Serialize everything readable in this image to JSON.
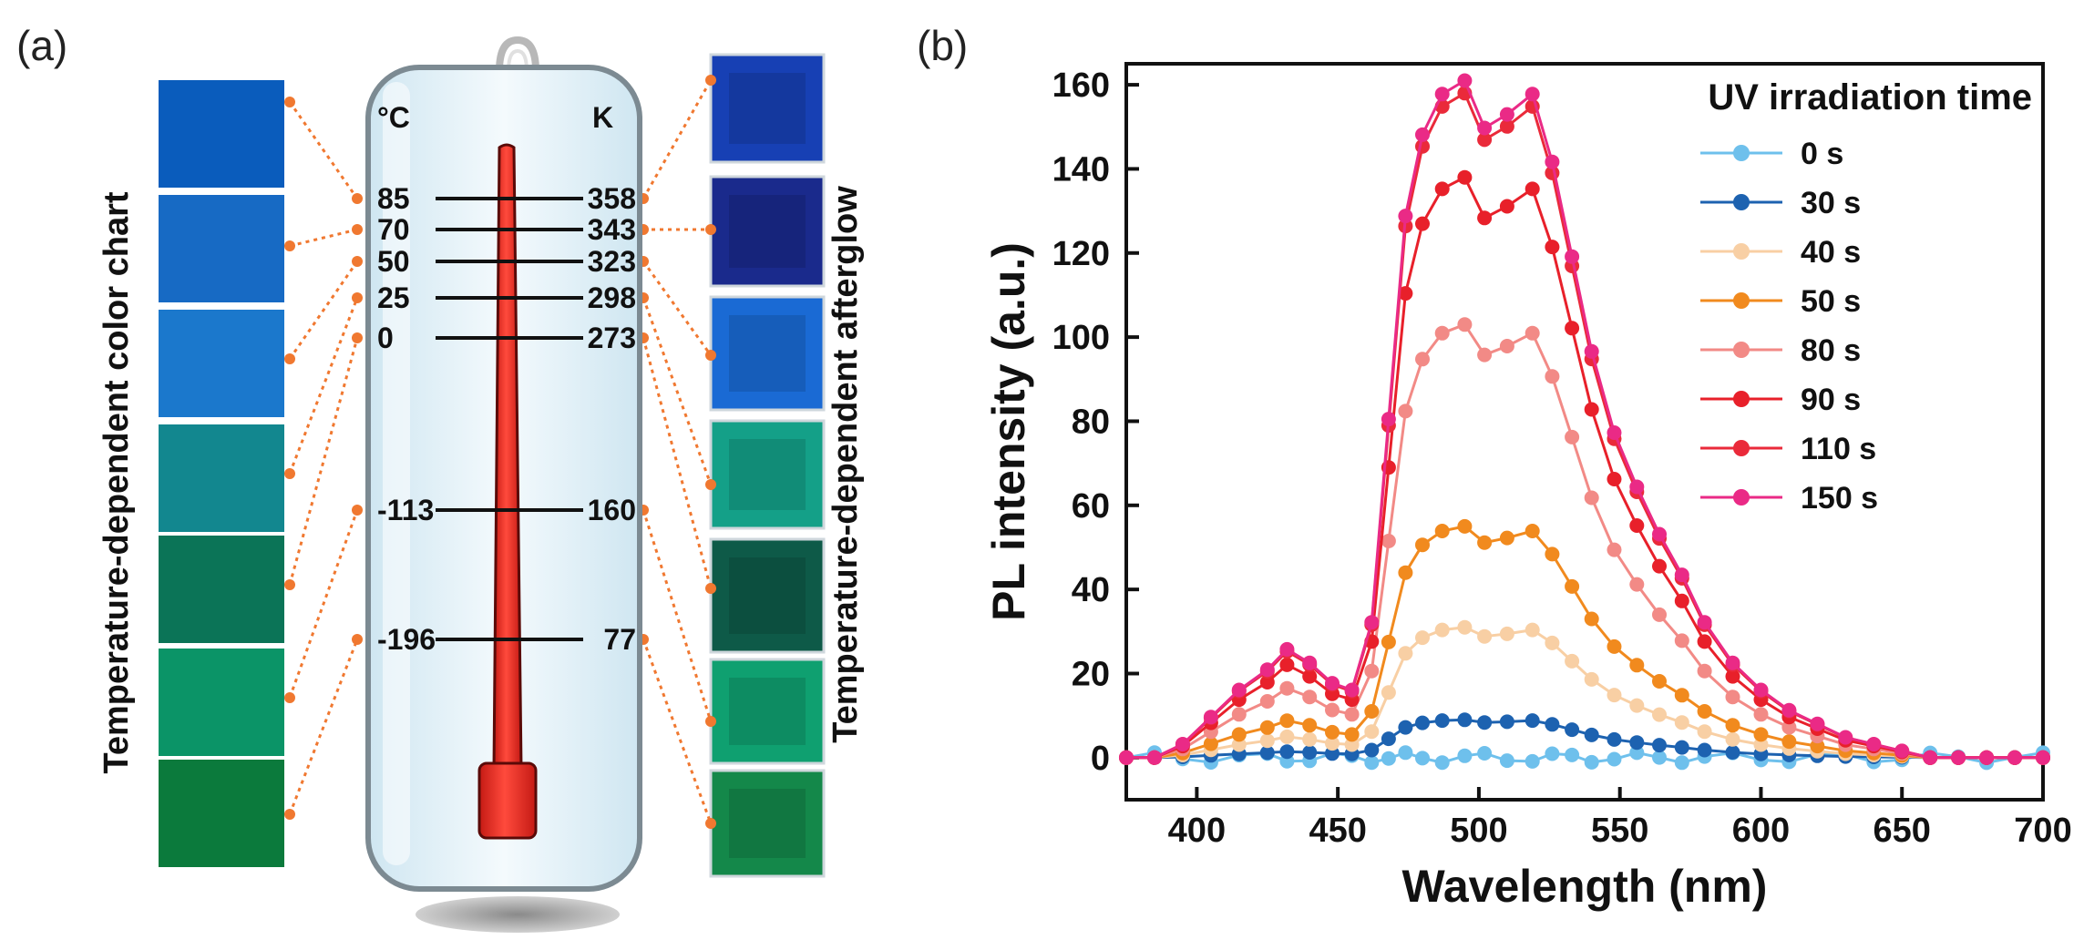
{
  "panel_a": {
    "label": "(a)",
    "left_title": "Temperature-dependent color chart",
    "right_title": "Temperature-dependent afterglow",
    "unit_c": "°C",
    "unit_k": "K",
    "marks": [
      {
        "c": "85",
        "k": "358"
      },
      {
        "c": "70",
        "k": "343"
      },
      {
        "c": "50",
        "k": "323"
      },
      {
        "c": "25",
        "k": "298"
      },
      {
        "c": "0",
        "k": "273"
      },
      {
        "c": "-113",
        "k": "160"
      },
      {
        "c": "-196",
        "k": "77"
      }
    ],
    "color_chart": [
      "#0a5cbc",
      "#176ac4",
      "#1b78cc",
      "#12878f",
      "#0b7457",
      "#0b9467",
      "#0b7a3c"
    ],
    "afterglow": [
      "#1740b4",
      "#1a2a8c",
      "#1a6ad4",
      "#14a088",
      "#0e5a48",
      "#0fa070",
      "#14884a"
    ],
    "connector_color": "#f07830",
    "mercury_color": "#ee2a24"
  },
  "panel_b": {
    "label": "(b)"
  },
  "chart_data": {
    "type": "line",
    "title": "",
    "xlabel": "Wavelength (nm)",
    "ylabel": "PL intensity (a.u.)",
    "xlim": [
      375,
      700
    ],
    "ylim": [
      -10,
      165
    ],
    "xticks": [
      400,
      450,
      500,
      550,
      600,
      650,
      700
    ],
    "yticks": [
      0,
      20,
      40,
      60,
      80,
      100,
      120,
      140,
      160
    ],
    "grid": false,
    "legend": {
      "title": "UV irradiation time",
      "position": "top-right"
    },
    "series": [
      {
        "name": "0 s",
        "color": "#6ec0ec",
        "peak": 0
      },
      {
        "name": "30 s",
        "color": "#1d62b0",
        "peak": 9
      },
      {
        "name": "40 s",
        "color": "#f8cfa4",
        "peak": 31
      },
      {
        "name": "50 s",
        "color": "#f18a1e",
        "peak": 55
      },
      {
        "name": "80 s",
        "color": "#f28a86",
        "peak": 103
      },
      {
        "name": "90 s",
        "color": "#e8202a",
        "peak": 138
      },
      {
        "name": "110 s",
        "color": "#ea2a3a",
        "peak": 158
      },
      {
        "name": "150 s",
        "color": "#ea2a86",
        "peak": 161
      }
    ],
    "profile_x": [
      375,
      385,
      395,
      405,
      415,
      425,
      432,
      440,
      448,
      455,
      462,
      468,
      474,
      480,
      487,
      495,
      502,
      510,
      519,
      526,
      533,
      540,
      548,
      556,
      564,
      572,
      580,
      590,
      600,
      610,
      620,
      630,
      640,
      650,
      660,
      670,
      680,
      690,
      700
    ],
    "profile_y": [
      0.0,
      0.0,
      0.02,
      0.06,
      0.1,
      0.13,
      0.16,
      0.14,
      0.11,
      0.1,
      0.2,
      0.5,
      0.8,
      0.92,
      0.98,
      1.0,
      0.93,
      0.95,
      0.98,
      0.88,
      0.74,
      0.6,
      0.48,
      0.4,
      0.33,
      0.27,
      0.2,
      0.14,
      0.1,
      0.07,
      0.05,
      0.03,
      0.02,
      0.01,
      0.0,
      0.0,
      0.0,
      0.0,
      0.0
    ]
  }
}
